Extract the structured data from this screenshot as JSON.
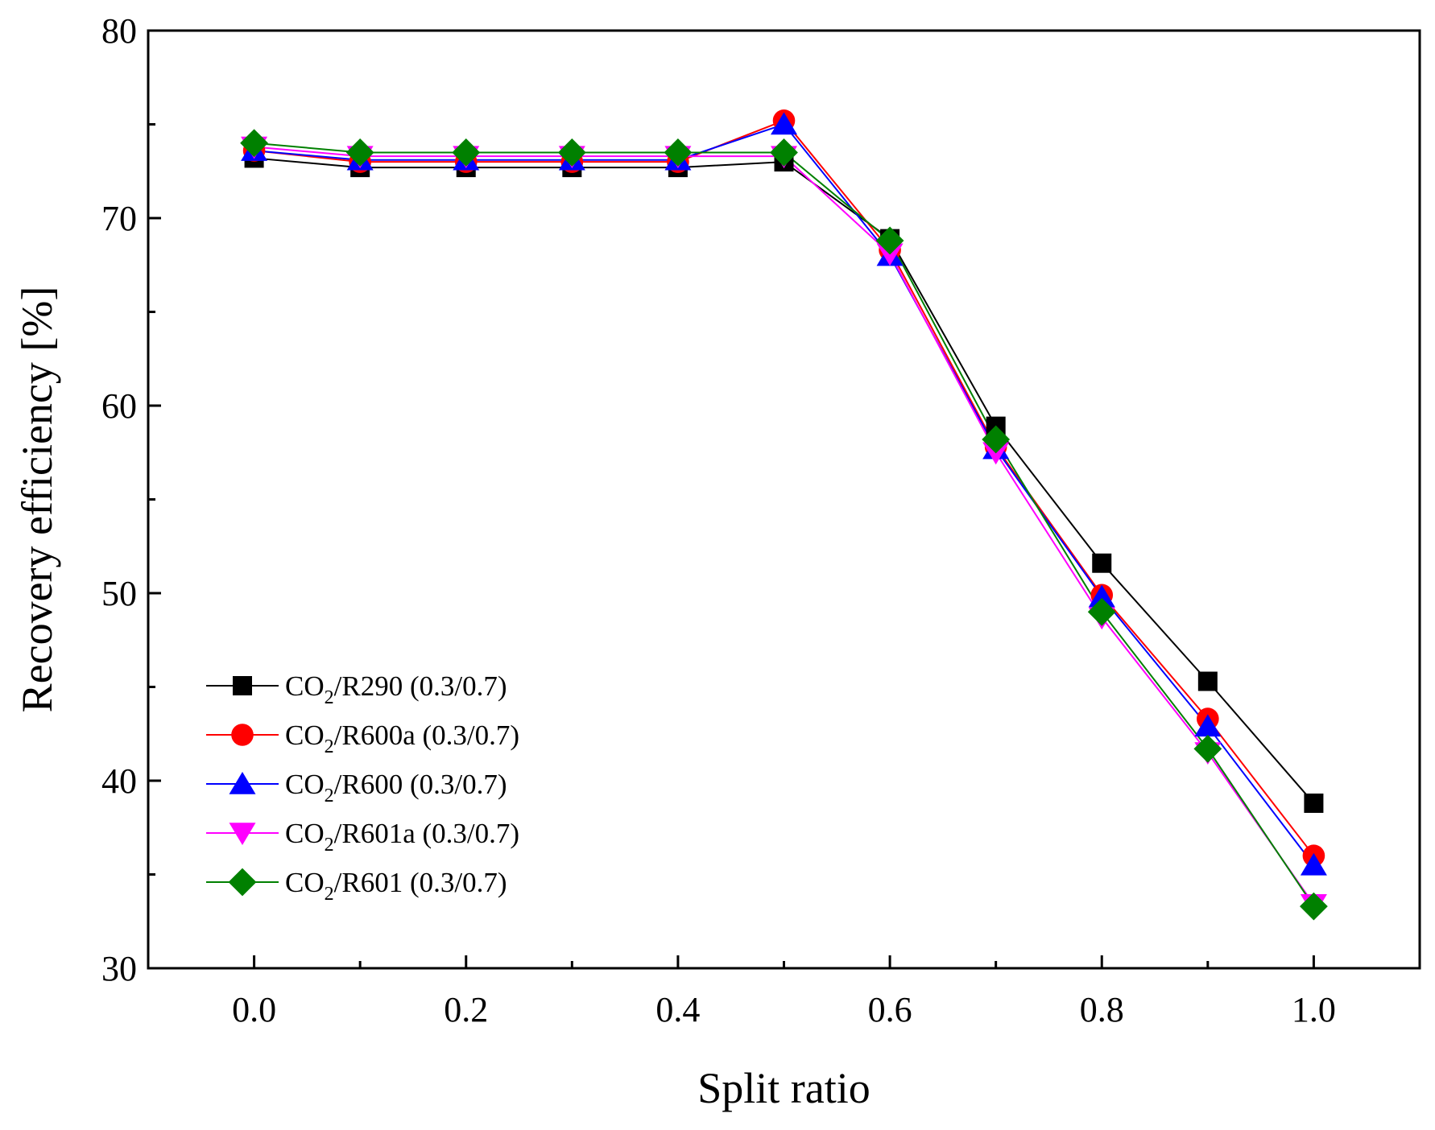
{
  "chart_data": {
    "type": "line",
    "title": "",
    "xlabel": "Split ratio",
    "ylabel": "Recovery efficiency [%]",
    "xlim": [
      -0.1,
      1.1
    ],
    "ylim": [
      30,
      80
    ],
    "x_ticks": [
      "0.0",
      "0.2",
      "0.4",
      "0.6",
      "0.8",
      "1.0"
    ],
    "y_ticks": [
      "30",
      "40",
      "50",
      "60",
      "70",
      "80"
    ],
    "grid": false,
    "legend_position": "bottom-left",
    "x": [
      0.0,
      0.1,
      0.2,
      0.3,
      0.4,
      0.5,
      0.6,
      0.7,
      0.8,
      0.9,
      1.0
    ],
    "series": [
      {
        "name": "CO2/R290 (0.3/0.7)",
        "prefix": "CO",
        "sub": "2",
        "suffix": "/R290 (0.3/0.7)",
        "color": "#000000",
        "marker": "square",
        "values": [
          73.2,
          72.7,
          72.7,
          72.7,
          72.7,
          73.0,
          68.9,
          58.9,
          51.6,
          45.3,
          38.8
        ]
      },
      {
        "name": "CO2/R600a (0.3/0.7)",
        "prefix": "CO",
        "sub": "2",
        "suffix": "/R600a (0.3/0.7)",
        "color": "#ff0000",
        "marker": "circle",
        "values": [
          73.6,
          73.0,
          73.0,
          73.0,
          73.0,
          75.2,
          68.3,
          57.8,
          49.9,
          43.3,
          36.0
        ]
      },
      {
        "name": "CO2/R600 (0.3/0.7)",
        "prefix": "CO",
        "sub": "2",
        "suffix": "/R600 (0.3/0.7)",
        "color": "#0000ff",
        "marker": "triangle-up",
        "values": [
          73.6,
          73.1,
          73.1,
          73.1,
          73.1,
          75.0,
          68.0,
          57.7,
          49.8,
          42.9,
          35.5
        ]
      },
      {
        "name": "CO2/R601a (0.3/0.7)",
        "prefix": "CO",
        "sub": "2",
        "suffix": "/R601a (0.3/0.7)",
        "color": "#ff00ff",
        "marker": "triangle-down",
        "values": [
          73.8,
          73.3,
          73.3,
          73.3,
          73.3,
          73.3,
          68.1,
          57.5,
          48.7,
          41.5,
          33.4
        ]
      },
      {
        "name": "CO2/R601 (0.3/0.7)",
        "prefix": "CO",
        "sub": "2",
        "suffix": "/R601 (0.3/0.7)",
        "color": "#008000",
        "marker": "diamond",
        "values": [
          74.0,
          73.5,
          73.5,
          73.5,
          73.5,
          73.5,
          68.8,
          58.2,
          49.0,
          41.7,
          33.3
        ]
      }
    ]
  }
}
